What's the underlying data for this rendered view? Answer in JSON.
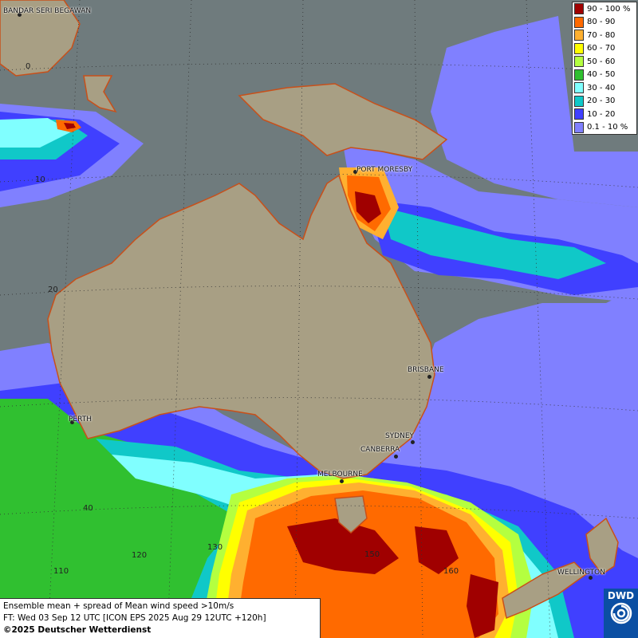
{
  "legend": {
    "items": [
      {
        "label": "90 - 100 %",
        "color": "#a00000"
      },
      {
        "label": "80 - 90",
        "color": "#ff6a00"
      },
      {
        "label": "70 - 80",
        "color": "#ffb030"
      },
      {
        "label": "60 - 70",
        "color": "#ffff00"
      },
      {
        "label": "50 - 60",
        "color": "#b4ff40"
      },
      {
        "label": "40 - 50",
        "color": "#30c030"
      },
      {
        "label": "30 - 40",
        "color": "#80ffff"
      },
      {
        "label": "20 - 30",
        "color": "#10c8c8"
      },
      {
        "label": "10 - 20",
        "color": "#4040ff"
      },
      {
        "label": "0.1 - 10 %",
        "color": "#8080ff"
      }
    ]
  },
  "cities": [
    {
      "name": "BANDAR SERI BEGAWAN"
    },
    {
      "name": "PORT MORESBY"
    },
    {
      "name": "PERTH"
    },
    {
      "name": "BRISBANE"
    },
    {
      "name": "SYDNEY"
    },
    {
      "name": "CANBERRA"
    },
    {
      "name": "MELBOURNE"
    },
    {
      "name": "WELLINGTON"
    }
  ],
  "graticule_labels": [
    "0",
    "10",
    "20",
    "40",
    "130",
    "120",
    "110",
    "150",
    "160"
  ],
  "info": {
    "line1": "Ensemble mean + spread of Mean wind speed >10m/s",
    "line2": "FT: Wed 03 Sep 12 UTC [ICON EPS 2025 Aug 29 12UTC +120h]",
    "line3": "©2025 Deutscher Wetterdienst"
  },
  "logo": {
    "text": "DWD"
  }
}
